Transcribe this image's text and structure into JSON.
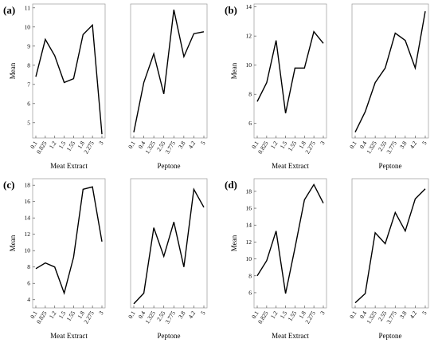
{
  "chart_data": [
    {
      "type": "line",
      "label": "(a)",
      "ylabel": "Mean",
      "ylim": [
        4.2,
        11.2
      ],
      "yticks": [
        5,
        6,
        7,
        8,
        9,
        10,
        11
      ],
      "panels": [
        {
          "xlabel": "Meat Extract",
          "categories": [
            "0.1",
            "0.825",
            "1.2",
            "1.5",
            "1.55",
            "1.8",
            "2.275",
            "3"
          ],
          "values": [
            7.4,
            9.35,
            8.5,
            7.1,
            7.3,
            9.6,
            10.1,
            4.4
          ]
        },
        {
          "xlabel": "Peptone",
          "categories": [
            "0.1",
            "0.4",
            "1.325",
            "2.55",
            "3.775",
            "3.8",
            "4.2",
            "5"
          ],
          "values": [
            4.5,
            7.1,
            8.6,
            6.5,
            10.9,
            8.45,
            9.65,
            9.75
          ]
        }
      ]
    },
    {
      "type": "line",
      "label": "(b)",
      "ylabel": "Mean",
      "ylim": [
        5.0,
        14.2
      ],
      "yticks": [
        6,
        8,
        10,
        12,
        14
      ],
      "panels": [
        {
          "xlabel": "Meat Extract",
          "categories": [
            "0.1",
            "0.825",
            "1.2",
            "1.5",
            "1.55",
            "1.8",
            "2.275",
            "3"
          ],
          "values": [
            7.5,
            8.8,
            11.7,
            6.7,
            9.8,
            9.8,
            12.3,
            11.5
          ]
        },
        {
          "xlabel": "Peptone",
          "categories": [
            "0.1",
            "0.4",
            "1.325",
            "2.55",
            "3.775",
            "3.8",
            "4.2",
            "5"
          ],
          "values": [
            5.4,
            6.8,
            8.8,
            9.8,
            12.2,
            11.7,
            9.8,
            13.7
          ]
        }
      ]
    },
    {
      "type": "line",
      "label": "(c)",
      "ylabel": "Mean",
      "ylim": [
        3.0,
        18.8
      ],
      "yticks": [
        4,
        6,
        8,
        10,
        12,
        14,
        16,
        18
      ],
      "panels": [
        {
          "xlabel": "Meat Extract",
          "categories": [
            "0.1",
            "0.825",
            "1.2",
            "1.5",
            "1.55",
            "1.8",
            "2.275",
            "3"
          ],
          "values": [
            7.8,
            8.5,
            8.0,
            4.8,
            9.2,
            17.5,
            17.8,
            11.1
          ]
        },
        {
          "xlabel": "Peptone",
          "categories": [
            "0.1",
            "0.4",
            "1.325",
            "2.55",
            "3.775",
            "3.8",
            "4.2",
            "5"
          ],
          "values": [
            3.5,
            4.8,
            12.8,
            9.3,
            13.5,
            8.0,
            17.5,
            15.3
          ]
        }
      ]
    },
    {
      "type": "line",
      "label": "(d)",
      "ylabel": "Mean",
      "ylim": [
        4.2,
        19.5
      ],
      "yticks": [
        6,
        8,
        10,
        12,
        14,
        16,
        18
      ],
      "panels": [
        {
          "xlabel": "Meat Extract",
          "categories": [
            "0.1",
            "0.825",
            "1.2",
            "1.5",
            "1.55",
            "1.8",
            "2.275",
            "3"
          ],
          "values": [
            8.0,
            9.8,
            13.3,
            5.9,
            11.3,
            17.0,
            18.8,
            16.6
          ]
        },
        {
          "xlabel": "Peptone",
          "categories": [
            "0.1",
            "0.4",
            "1.325",
            "2.55",
            "3.775",
            "3.8",
            "4.2",
            "5"
          ],
          "values": [
            4.8,
            5.9,
            13.1,
            11.8,
            15.5,
            13.3,
            17.1,
            18.3
          ]
        }
      ]
    }
  ]
}
